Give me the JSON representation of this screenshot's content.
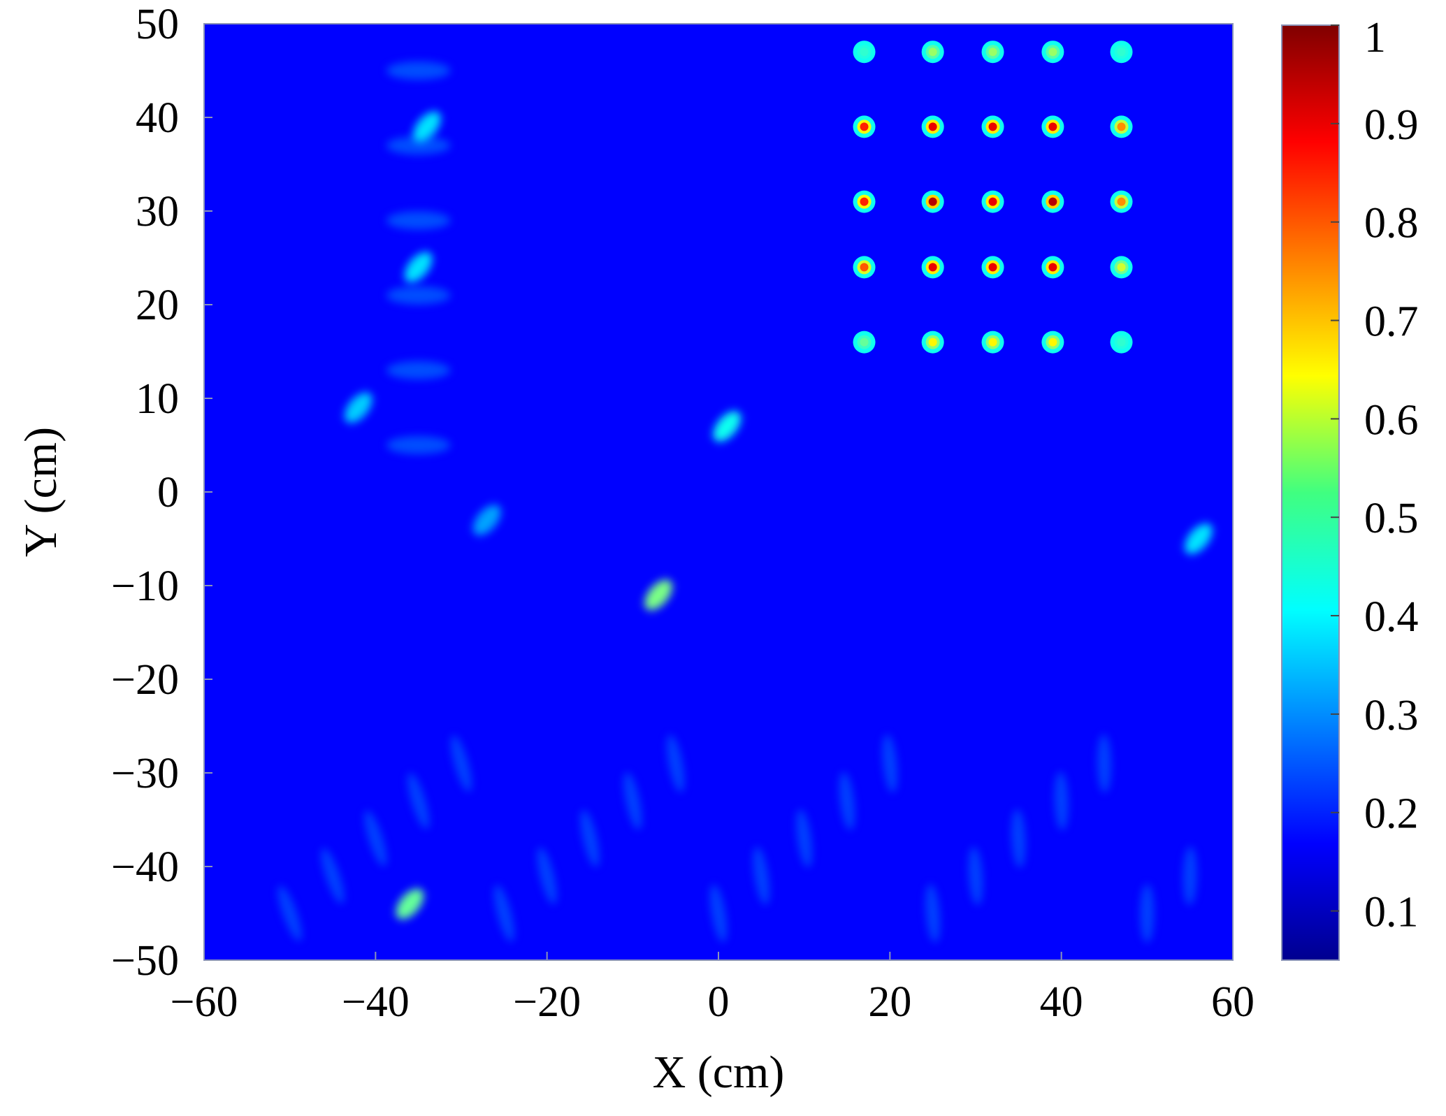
{
  "chart_data": {
    "type": "heatmap",
    "title": "",
    "xlabel": "X (cm)",
    "ylabel": "Y (cm)",
    "xlim": [
      -60,
      60
    ],
    "ylim": [
      -50,
      50
    ],
    "x_ticks": [
      "−60",
      "−40",
      "−20",
      "0",
      "20",
      "40",
      "60"
    ],
    "y_ticks": [
      "50",
      "40",
      "30",
      "20",
      "10",
      "0",
      "−10",
      "−20",
      "−30",
      "−40",
      "−50"
    ],
    "colorbar": {
      "range": [
        0.05,
        1
      ],
      "ticks": [
        "1",
        "0.9",
        "0.8",
        "0.7",
        "0.6",
        "0.5",
        "0.4",
        "0.3",
        "0.2",
        "0.1"
      ],
      "colormap": "jet"
    },
    "background_level": 0.17,
    "focal_grid": {
      "x": [
        17,
        25,
        32,
        39,
        47
      ],
      "y": [
        47,
        39,
        31,
        24,
        16
      ],
      "peak_values": [
        [
          0.45,
          0.55,
          0.55,
          0.55,
          0.45
        ],
        [
          0.85,
          0.9,
          0.9,
          0.9,
          0.75
        ],
        [
          0.85,
          0.95,
          0.9,
          0.95,
          0.75
        ],
        [
          0.8,
          0.9,
          0.9,
          0.9,
          0.6
        ],
        [
          0.5,
          0.65,
          0.65,
          0.65,
          0.45
        ]
      ]
    },
    "notable_features": [
      {
        "x": -7,
        "y": -11,
        "value": 0.52
      },
      {
        "x": -36,
        "y": -44,
        "value": 0.5
      },
      {
        "x": -34,
        "y": 39,
        "value": 0.38
      },
      {
        "x": -35,
        "y": 24,
        "value": 0.38
      },
      {
        "x": -42,
        "y": 9,
        "value": 0.36
      },
      {
        "x": -27,
        "y": -3,
        "value": 0.32
      },
      {
        "x": 1,
        "y": 7,
        "value": 0.42
      },
      {
        "x": 56,
        "y": -5,
        "value": 0.38
      }
    ]
  }
}
